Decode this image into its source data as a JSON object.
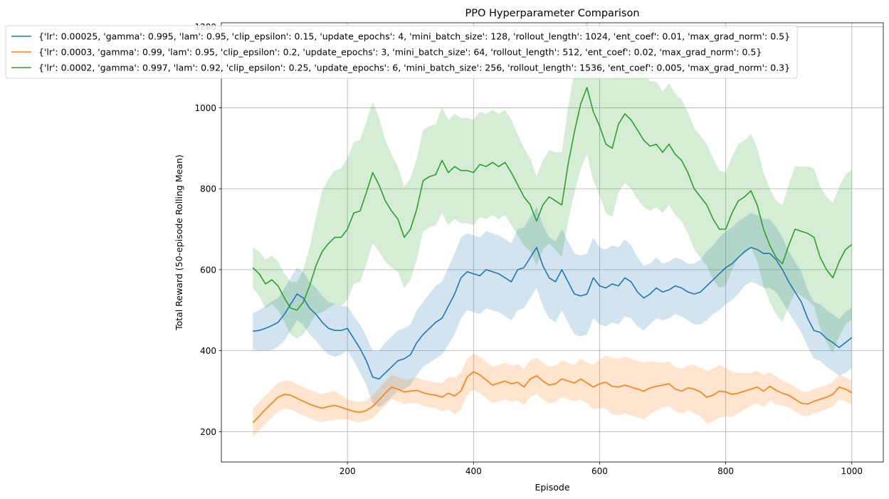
{
  "chart_data": {
    "type": "line",
    "title": "PPO Hyperparameter Comparison",
    "xlabel": "Episode",
    "ylabel": "Total Reward (50-episode Rolling Mean)",
    "xlim": [
      0,
      1050
    ],
    "ylim": [
      125,
      1210
    ],
    "x_ticks": [
      200,
      400,
      600,
      800,
      1000
    ],
    "y_ticks": [
      200,
      400,
      600,
      800,
      1000,
      1200
    ],
    "grid": true,
    "legend_position": "top-left",
    "x": [
      50,
      60,
      70,
      80,
      90,
      100,
      110,
      120,
      130,
      140,
      150,
      160,
      170,
      180,
      190,
      200,
      210,
      220,
      230,
      240,
      250,
      260,
      270,
      280,
      290,
      300,
      310,
      320,
      330,
      340,
      350,
      360,
      370,
      380,
      390,
      400,
      410,
      420,
      430,
      440,
      450,
      460,
      470,
      480,
      490,
      500,
      510,
      520,
      530,
      540,
      550,
      560,
      570,
      580,
      590,
      600,
      610,
      620,
      630,
      640,
      650,
      660,
      670,
      680,
      690,
      700,
      710,
      720,
      730,
      740,
      750,
      760,
      770,
      780,
      790,
      800,
      810,
      820,
      830,
      840,
      850,
      860,
      870,
      880,
      890,
      900,
      910,
      920,
      930,
      940,
      950,
      960,
      970,
      980,
      990,
      1000
    ],
    "series": [
      {
        "name": "{'lr': 0.00025, 'gamma': 0.995, 'lam': 0.95, 'clip_epsilon': 0.15, 'update_epochs': 4, 'mini_batch_size': 128, 'rollout_length': 1024, 'ent_coef': 0.01, 'max_grad_norm': 0.5}",
        "color": "#1f77b4",
        "values": [
          448,
          450,
          455,
          462,
          470,
          490,
          515,
          540,
          530,
          505,
          490,
          470,
          455,
          450,
          450,
          455,
          430,
          405,
          375,
          335,
          330,
          345,
          360,
          375,
          380,
          390,
          420,
          440,
          455,
          470,
          480,
          510,
          540,
          580,
          595,
          590,
          585,
          600,
          595,
          590,
          580,
          570,
          600,
          605,
          630,
          655,
          610,
          580,
          570,
          600,
          570,
          540,
          535,
          540,
          580,
          560,
          555,
          565,
          560,
          580,
          570,
          545,
          530,
          540,
          555,
          545,
          550,
          560,
          555,
          545,
          540,
          545,
          560,
          575,
          590,
          605,
          615,
          630,
          645,
          655,
          650,
          640,
          640,
          625,
          600,
          570,
          545,
          520,
          480,
          450,
          445,
          430,
          420,
          408,
          420,
          432
        ],
        "band": [
          45,
          50,
          55,
          60,
          60,
          65,
          65,
          65,
          65,
          65,
          65,
          65,
          65,
          65,
          60,
          55,
          55,
          60,
          60,
          65,
          70,
          75,
          75,
          75,
          75,
          75,
          80,
          80,
          85,
          90,
          90,
          95,
          100,
          100,
          95,
          95,
          95,
          95,
          95,
          95,
          95,
          95,
          100,
          100,
          100,
          100,
          100,
          100,
          100,
          100,
          100,
          100,
          100,
          100,
          100,
          95,
          95,
          95,
          95,
          95,
          90,
          85,
          80,
          75,
          75,
          70,
          70,
          70,
          70,
          70,
          75,
          80,
          85,
          85,
          90,
          90,
          90,
          90,
          85,
          85,
          85,
          85,
          85,
          80,
          80,
          75,
          75,
          75,
          70,
          70,
          70,
          70,
          70,
          70,
          75,
          75
        ]
      },
      {
        "name": "{'lr': 0.0003, 'gamma': 0.99, 'lam': 0.95, 'clip_epsilon': 0.2, 'update_epochs': 3, 'mini_batch_size': 64, 'rollout_length': 512, 'ent_coef': 0.02, 'max_grad_norm': 0.5}",
        "color": "#ff7f0e",
        "values": [
          222,
          238,
          255,
          270,
          285,
          292,
          290,
          282,
          275,
          268,
          262,
          258,
          262,
          265,
          260,
          255,
          250,
          248,
          252,
          262,
          278,
          295,
          310,
          305,
          298,
          300,
          302,
          296,
          292,
          290,
          285,
          295,
          288,
          300,
          335,
          348,
          340,
          328,
          315,
          320,
          325,
          318,
          322,
          310,
          330,
          338,
          325,
          315,
          318,
          330,
          325,
          320,
          330,
          320,
          310,
          318,
          322,
          312,
          310,
          315,
          310,
          305,
          300,
          308,
          312,
          315,
          318,
          305,
          300,
          308,
          305,
          298,
          285,
          290,
          300,
          298,
          292,
          295,
          300,
          305,
          310,
          300,
          312,
          302,
          295,
          290,
          280,
          270,
          268,
          275,
          280,
          285,
          292,
          310,
          305,
          296
        ],
        "band": [
          35,
          35,
          35,
          35,
          35,
          35,
          35,
          35,
          35,
          35,
          35,
          35,
          35,
          35,
          30,
          25,
          25,
          25,
          25,
          28,
          30,
          30,
          30,
          30,
          30,
          30,
          32,
          32,
          32,
          32,
          35,
          40,
          45,
          45,
          45,
          45,
          45,
          45,
          45,
          45,
          45,
          45,
          45,
          45,
          45,
          45,
          45,
          45,
          45,
          45,
          45,
          45,
          50,
          50,
          55,
          60,
          65,
          70,
          70,
          70,
          70,
          70,
          70,
          65,
          60,
          55,
          55,
          55,
          55,
          55,
          60,
          60,
          65,
          65,
          65,
          60,
          55,
          50,
          45,
          40,
          40,
          40,
          35,
          35,
          30,
          30,
          30,
          30,
          30,
          30,
          30,
          30,
          30,
          30,
          30,
          30
        ]
      },
      {
        "name": "{'lr': 0.0002, 'gamma': 0.997, 'lam': 0.92, 'clip_epsilon': 0.25, 'update_epochs': 6, 'mini_batch_size': 256, 'rollout_length': 1536, 'ent_coef': 0.005, 'max_grad_norm': 0.3}",
        "color": "#2ca02c",
        "values": [
          605,
          590,
          565,
          575,
          560,
          530,
          505,
          500,
          520,
          560,
          610,
          645,
          665,
          680,
          680,
          700,
          740,
          745,
          790,
          840,
          810,
          770,
          745,
          725,
          680,
          700,
          750,
          820,
          830,
          835,
          870,
          840,
          855,
          845,
          845,
          840,
          860,
          855,
          865,
          855,
          865,
          840,
          810,
          780,
          760,
          720,
          760,
          780,
          770,
          760,
          860,
          940,
          1010,
          1050,
          990,
          955,
          910,
          900,
          960,
          985,
          970,
          945,
          920,
          905,
          910,
          890,
          910,
          885,
          870,
          840,
          800,
          780,
          760,
          725,
          700,
          700,
          740,
          770,
          780,
          795,
          760,
          700,
          660,
          630,
          615,
          660,
          700,
          695,
          690,
          680,
          630,
          600,
          580,
          620,
          650,
          662
        ],
        "band": [
          50,
          55,
          60,
          60,
          60,
          60,
          65,
          70,
          80,
          95,
          120,
          150,
          160,
          165,
          170,
          175,
          175,
          175,
          175,
          175,
          165,
          150,
          140,
          130,
          125,
          125,
          125,
          125,
          125,
          125,
          130,
          130,
          130,
          130,
          130,
          130,
          130,
          130,
          130,
          130,
          130,
          130,
          125,
          120,
          115,
          110,
          110,
          115,
          120,
          130,
          140,
          150,
          160,
          165,
          170,
          170,
          170,
          170,
          170,
          170,
          170,
          170,
          165,
          160,
          155,
          150,
          150,
          150,
          150,
          150,
          150,
          150,
          150,
          150,
          145,
          140,
          140,
          140,
          140,
          140,
          140,
          140,
          140,
          140,
          145,
          150,
          155,
          160,
          165,
          170,
          175,
          180,
          185,
          185,
          185,
          185
        ]
      }
    ]
  }
}
